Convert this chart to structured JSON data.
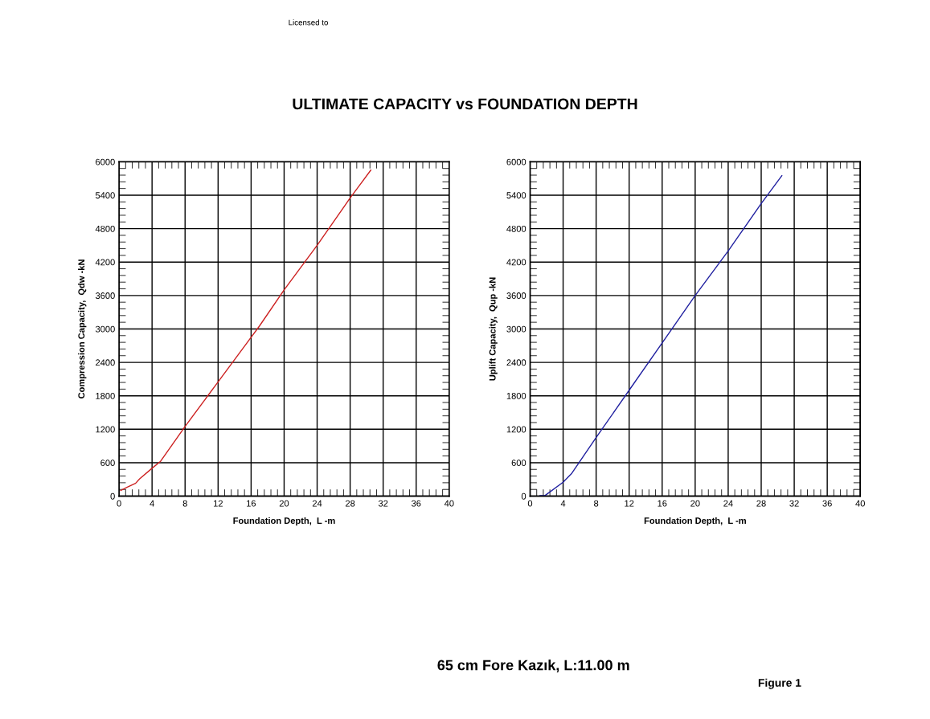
{
  "chart_data": [
    {
      "type": "line",
      "title": "ULTIMATE CAPACITY vs FOUNDATION DEPTH",
      "xlabel": "Foundation Depth,  L -m",
      "ylabel": "Compression Capacity,  Qdw -kN",
      "annotations": [
        "Licensed to",
        "65 cm Fore Kazık, L:11.00 m",
        "Figure 1"
      ],
      "series": [
        {
          "color": "#cc2020",
          "x": [
            0.2,
            1,
            2,
            2.5,
            4,
            5,
            8,
            12,
            16,
            17,
            20,
            24,
            28,
            29,
            30.5
          ],
          "values": [
            100,
            160,
            230,
            310,
            500,
            620,
            1250,
            2050,
            2850,
            3050,
            3700,
            4500,
            5350,
            5550,
            5850
          ]
        }
      ],
      "xlim": [
        0,
        40
      ],
      "xticks": [
        0,
        4,
        8,
        12,
        16,
        20,
        24,
        28,
        32,
        36,
        40
      ],
      "ylim": [
        0,
        6000
      ],
      "yticks": [
        0,
        600,
        1200,
        1800,
        2400,
        3000,
        3600,
        4200,
        4800,
        5400,
        6000
      ],
      "grid": true
    },
    {
      "type": "line",
      "xlabel": "Foundation Depth,  L -m",
      "ylabel": "Uplift Capacity,  Qup -kN",
      "series": [
        {
          "color": "#2020a0",
          "x": [
            1.2,
            1.8,
            4,
            5,
            8,
            12,
            16,
            20,
            24,
            28,
            30.5
          ],
          "values": [
            10,
            10,
            250,
            400,
            1050,
            1900,
            2750,
            3600,
            4400,
            5250,
            5750
          ]
        }
      ],
      "xlim": [
        0,
        40
      ],
      "xticks": [
        0,
        4,
        8,
        12,
        16,
        20,
        24,
        28,
        32,
        36,
        40
      ],
      "ylim": [
        0,
        6000
      ],
      "yticks": [
        0,
        600,
        1200,
        1800,
        2400,
        3000,
        3600,
        4200,
        4800,
        5400,
        6000
      ],
      "grid": true
    }
  ]
}
